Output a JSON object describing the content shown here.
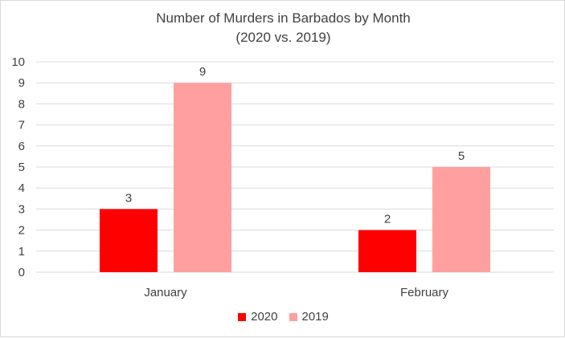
{
  "chart_data": {
    "type": "bar",
    "title": "Number of Murders in Barbados by Month",
    "subtitle": "(2020 vs. 2019)",
    "categories": [
      "January",
      "February"
    ],
    "series": [
      {
        "name": "2020",
        "values": [
          3,
          2
        ],
        "color": "#ff0000"
      },
      {
        "name": "2019",
        "values": [
          9,
          5
        ],
        "color": "#ff9f9f"
      }
    ],
    "xlabel": "",
    "ylabel": "",
    "ylim": [
      0,
      10
    ],
    "yticks": [
      0,
      1,
      2,
      3,
      4,
      5,
      6,
      7,
      8,
      9,
      10
    ],
    "grid": true,
    "data_labels": true,
    "legend_position": "bottom"
  }
}
